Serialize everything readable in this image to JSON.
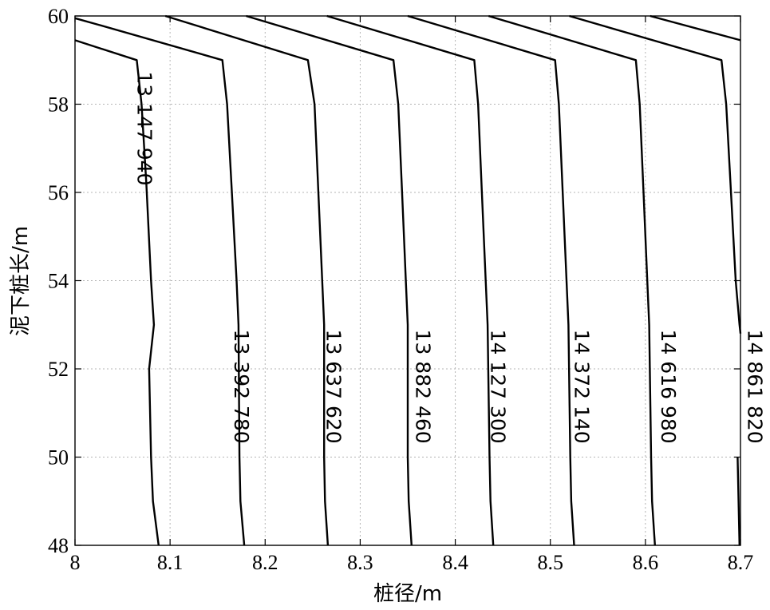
{
  "chart_data": {
    "type": "contour",
    "xlabel": "桩径/m",
    "ylabel": "泥下桩长/m",
    "xlim": [
      8,
      8.7
    ],
    "ylim": [
      48,
      60
    ],
    "x_ticks": [
      8,
      8.1,
      8.2,
      8.3,
      8.4,
      8.5,
      8.6,
      8.7
    ],
    "x_tick_labels": [
      "8",
      "8.1",
      "8.2",
      "8.3",
      "8.4",
      "8.5",
      "8.6",
      "8.7"
    ],
    "y_ticks": [
      48,
      50,
      52,
      54,
      56,
      58,
      60
    ],
    "y_tick_labels": [
      "48",
      "50",
      "52",
      "54",
      "56",
      "58",
      "60"
    ],
    "grid": true,
    "levels": [
      {
        "label": "13 147 940",
        "points": [
          [
            8.0,
            59.45
          ],
          [
            8.065,
            59.0
          ],
          [
            8.07,
            58.0
          ],
          [
            8.075,
            56.2
          ],
          [
            8.08,
            54.0
          ],
          [
            8.083,
            53.0
          ],
          [
            8.078,
            52.0
          ],
          [
            8.08,
            50.0
          ],
          [
            8.082,
            49.0
          ],
          [
            8.088,
            48.0
          ]
        ],
        "label_at": [
          8.073,
          57.45
        ]
      },
      {
        "label": "13 392 780",
        "points": [
          [
            8.0,
            59.95
          ],
          [
            8.025,
            59.8
          ],
          [
            8.155,
            59.0
          ],
          [
            8.16,
            58.0
          ],
          [
            8.165,
            56.0
          ],
          [
            8.17,
            54.0
          ],
          [
            8.172,
            53.0
          ],
          [
            8.173,
            50.0
          ],
          [
            8.174,
            49.0
          ],
          [
            8.178,
            48.0
          ]
        ],
        "label_at": [
          8.175,
          51.6
        ]
      },
      {
        "label": "13 637 620",
        "points": [
          [
            8.095,
            60.0
          ],
          [
            8.245,
            59.0
          ],
          [
            8.252,
            58.0
          ],
          [
            8.256,
            56.0
          ],
          [
            8.26,
            54.0
          ],
          [
            8.262,
            53.0
          ],
          [
            8.262,
            50.0
          ],
          [
            8.263,
            49.0
          ],
          [
            8.266,
            48.0
          ]
        ],
        "label_at": [
          8.272,
          51.6
        ]
      },
      {
        "label": "13 882 460",
        "points": [
          [
            8.18,
            60.0
          ],
          [
            8.335,
            59.0
          ],
          [
            8.34,
            58.0
          ],
          [
            8.344,
            56.0
          ],
          [
            8.348,
            54.0
          ],
          [
            8.35,
            53.0
          ],
          [
            8.35,
            50.0
          ],
          [
            8.351,
            49.0
          ],
          [
            8.354,
            48.0
          ]
        ],
        "label_at": [
          8.366,
          51.6
        ]
      },
      {
        "label": "14 127 300",
        "points": [
          [
            8.265,
            60.0
          ],
          [
            8.42,
            59.0
          ],
          [
            8.424,
            58.0
          ],
          [
            8.428,
            56.0
          ],
          [
            8.432,
            54.0
          ],
          [
            8.434,
            53.0
          ],
          [
            8.436,
            50.0
          ],
          [
            8.437,
            49.0
          ],
          [
            8.44,
            48.0
          ]
        ],
        "label_at": [
          8.445,
          51.6
        ]
      },
      {
        "label": "14 372 140",
        "points": [
          [
            8.35,
            60.0
          ],
          [
            8.505,
            59.0
          ],
          [
            8.509,
            58.0
          ],
          [
            8.513,
            56.0
          ],
          [
            8.517,
            54.0
          ],
          [
            8.519,
            53.0
          ],
          [
            8.521,
            50.0
          ],
          [
            8.522,
            49.0
          ],
          [
            8.525,
            48.0
          ]
        ],
        "label_at": [
          8.533,
          51.6
        ]
      },
      {
        "label": "14 616 980",
        "points": [
          [
            8.435,
            60.0
          ],
          [
            8.59,
            59.0
          ],
          [
            8.594,
            58.0
          ],
          [
            8.598,
            56.0
          ],
          [
            8.602,
            54.0
          ],
          [
            8.604,
            53.0
          ],
          [
            8.606,
            50.0
          ],
          [
            8.607,
            49.0
          ],
          [
            8.61,
            48.0
          ]
        ],
        "label_at": [
          8.624,
          51.6
        ]
      },
      {
        "label": "14 861 820",
        "points": [
          [
            8.52,
            60.0
          ],
          [
            8.68,
            59.0
          ],
          [
            8.685,
            58.0
          ],
          [
            8.69,
            56.0
          ],
          [
            8.695,
            54.0
          ],
          [
            8.699,
            53.0
          ],
          [
            8.7,
            52.8
          ]
        ],
        "label_at": [
          8.715,
          51.6
        ]
      },
      {
        "label": "",
        "points": [
          [
            8.697,
            50.0
          ],
          [
            8.698,
            49.0
          ],
          [
            8.699,
            48.0
          ]
        ],
        "label_at": null
      },
      {
        "label": "",
        "points": [
          [
            8.605,
            60.0
          ],
          [
            8.7,
            59.45
          ]
        ],
        "label_at": null
      }
    ]
  }
}
